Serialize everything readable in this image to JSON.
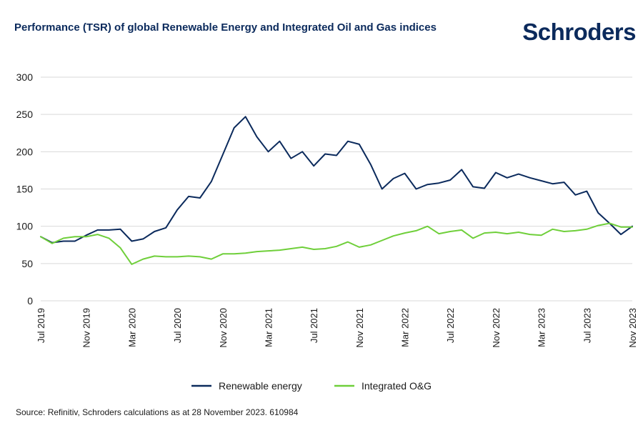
{
  "header": {
    "title": "Performance (TSR) of global Renewable Energy and Integrated Oil and Gas indices",
    "logo_text": "Schroders"
  },
  "footer": {
    "source": "Source: Refinitiv, Schroders calculations as at 28 November 2023. 610984"
  },
  "colors": {
    "renewable": "#0b2a5c",
    "oil_gas": "#6fcf3a",
    "grid": "#d9d9d9",
    "text": "#1a1a1a"
  },
  "chart_data": {
    "type": "line",
    "title": "Performance (TSR) of global Renewable Energy and Integrated Oil and Gas indices",
    "xlabel": "",
    "ylabel": "",
    "ylim": [
      0,
      300
    ],
    "yticks": [
      0,
      50,
      100,
      150,
      200,
      250,
      300
    ],
    "grid": true,
    "legend_position": "bottom",
    "x_tick_labels": [
      "Jul 2019",
      "Nov 2019",
      "Mar 2020",
      "Jul 2020",
      "Nov 2020",
      "Mar 2021",
      "Jul 2021",
      "Nov 2021",
      "Mar 2022",
      "Jul 2022",
      "Nov 2022",
      "Mar 2023",
      "Jul 2023",
      "Nov 2023"
    ],
    "x_tick_every": 4,
    "x": [
      "Jul 2019",
      "Aug 2019",
      "Sep 2019",
      "Oct 2019",
      "Nov 2019",
      "Dec 2019",
      "Jan 2020",
      "Feb 2020",
      "Mar 2020",
      "Apr 2020",
      "May 2020",
      "Jun 2020",
      "Jul 2020",
      "Aug 2020",
      "Sep 2020",
      "Oct 2020",
      "Nov 2020",
      "Dec 2020",
      "Jan 2021",
      "Feb 2021",
      "Mar 2021",
      "Apr 2021",
      "May 2021",
      "Jun 2021",
      "Jul 2021",
      "Aug 2021",
      "Sep 2021",
      "Oct 2021",
      "Nov 2021",
      "Dec 2021",
      "Jan 2022",
      "Feb 2022",
      "Mar 2022",
      "Apr 2022",
      "May 2022",
      "Jun 2022",
      "Jul 2022",
      "Aug 2022",
      "Sep 2022",
      "Oct 2022",
      "Nov 2022",
      "Dec 2022",
      "Jan 2023",
      "Feb 2023",
      "Mar 2023",
      "Apr 2023",
      "May 2023",
      "Jun 2023",
      "Jul 2023",
      "Aug 2023",
      "Sep 2023",
      "Oct 2023",
      "Nov 2023"
    ],
    "series": [
      {
        "name": "Renewable energy",
        "values": [
          86,
          78,
          80,
          80,
          88,
          95,
          95,
          96,
          80,
          83,
          93,
          98,
          122,
          140,
          138,
          160,
          196,
          232,
          247,
          220,
          200,
          214,
          191,
          200,
          181,
          197,
          195,
          214,
          210,
          183,
          150,
          164,
          171,
          150,
          156,
          158,
          162,
          176,
          153,
          151,
          172,
          165,
          170,
          165,
          161,
          157,
          159,
          142,
          147,
          118,
          104,
          89,
          100
        ]
      },
      {
        "name": "Integrated O&G",
        "values": [
          86,
          77,
          84,
          86,
          86,
          89,
          84,
          71,
          49,
          56,
          60,
          59,
          59,
          60,
          59,
          56,
          63,
          63,
          64,
          66,
          67,
          68,
          70,
          72,
          69,
          70,
          73,
          79,
          72,
          75,
          81,
          87,
          91,
          94,
          100,
          90,
          93,
          95,
          84,
          91,
          92,
          90,
          92,
          89,
          88,
          96,
          93,
          94,
          96,
          101,
          104,
          99,
          99
        ]
      }
    ]
  }
}
